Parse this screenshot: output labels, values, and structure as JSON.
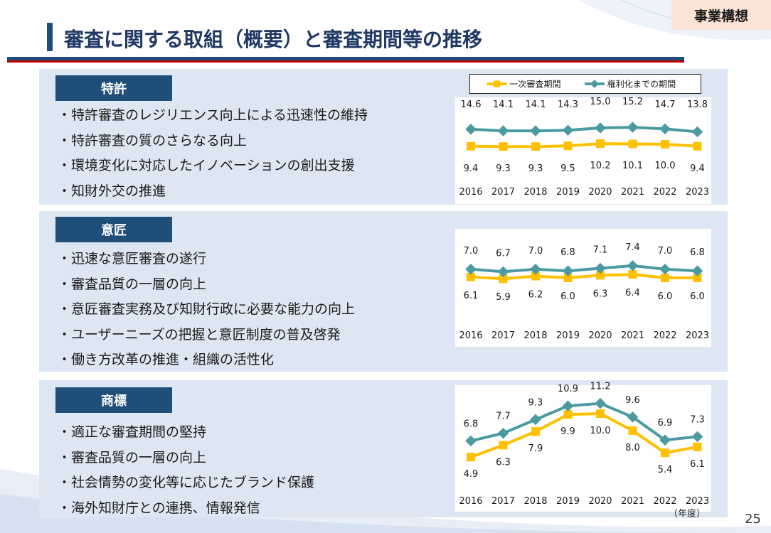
{
  "header": {
    "tag": "事業構想",
    "title": "審査に関する取組（概要）と審査期間等の推移"
  },
  "legend": {
    "series_a": "一次審査期間",
    "series_b": "権利化までの期間"
  },
  "unit_label": "（年度）",
  "page_number": "25",
  "colors": {
    "series_a": "#ffc000",
    "series_b": "#4a9aa0",
    "label_bg": "#1f4e79",
    "panel_bg": "#dde7f3"
  },
  "sections": [
    {
      "label": "特許",
      "items": [
        "・特許審査のレジリエンス向上による迅速性の維持",
        "・特許審査の質のさらなる向上",
        "・環境変化に対応したイノベーションの創出支援",
        "・知財外交の推進"
      ]
    },
    {
      "label": "意匠",
      "items": [
        "・迅速な意匠審査の遂行",
        "・審査品質の一層の向上",
        "・意匠審査実務及び知財行政に必要な能力の向上",
        "・ユーザーニーズの把握と意匠制度の普及啓発",
        "・働き方改革の推進・組織の活性化"
      ]
    },
    {
      "label": "商標",
      "items": [
        "・適正な審査期間の堅持",
        "・審査品質の一層の向上",
        "・社会情勢の変化等に応じたブランド保護",
        "・海外知財庁との連携、情報発信"
      ]
    }
  ],
  "chart_data": [
    {
      "type": "line",
      "x": [
        "2016",
        "2017",
        "2018",
        "2019",
        "2020",
        "2021",
        "2022",
        "2023"
      ],
      "series": [
        {
          "name": "一次審査期間",
          "values": [
            9.4,
            9.3,
            9.3,
            9.5,
            10.2,
            10.1,
            10.0,
            9.4
          ]
        },
        {
          "name": "権利化までの期間",
          "values": [
            14.6,
            14.1,
            14.1,
            14.3,
            15.0,
            15.2,
            14.7,
            13.8
          ]
        }
      ],
      "ylim": [
        0,
        20
      ],
      "grid": false,
      "legend": "top"
    },
    {
      "type": "line",
      "x": [
        "2016",
        "2017",
        "2018",
        "2019",
        "2020",
        "2021",
        "2022",
        "2023"
      ],
      "series": [
        {
          "name": "一次審査期間",
          "values": [
            6.1,
            5.9,
            6.2,
            6.0,
            6.3,
            6.4,
            6.0,
            6.0
          ]
        },
        {
          "name": "権利化までの期間",
          "values": [
            7.0,
            6.7,
            7.0,
            6.8,
            7.1,
            7.4,
            7.0,
            6.8
          ]
        }
      ],
      "ylim": [
        2,
        10
      ],
      "grid": false
    },
    {
      "type": "line",
      "x": [
        "2016",
        "2017",
        "2018",
        "2019",
        "2020",
        "2021",
        "2022",
        "2023"
      ],
      "series": [
        {
          "name": "一次審査期間",
          "values": [
            4.9,
            6.3,
            7.9,
            9.9,
            10.0,
            8.0,
            5.4,
            6.1
          ]
        },
        {
          "name": "権利化までの期間",
          "values": [
            6.8,
            7.7,
            9.3,
            10.9,
            11.2,
            9.6,
            6.9,
            7.3
          ]
        }
      ],
      "ylim": [
        2,
        12
      ],
      "grid": false
    }
  ]
}
